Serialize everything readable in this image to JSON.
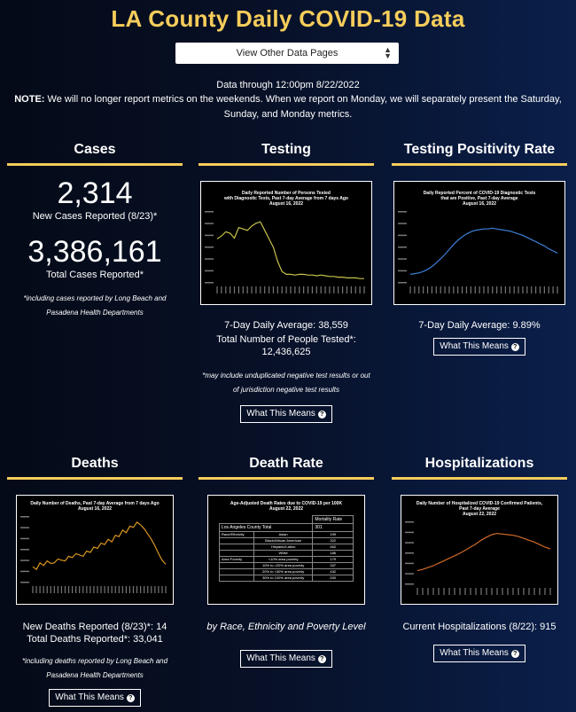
{
  "title": "LA County Daily COVID-19 Data",
  "select": {
    "value": "View Other Data Pages",
    "chevron": "updown-chevron-icon"
  },
  "data_through": "Data through 12:00pm 8/22/2022",
  "note": {
    "label": "NOTE:",
    "text": " We will no longer report metrics on the weekends. When we report on Monday, we will separately present the Saturday, Sunday, and Monday metrics."
  },
  "more_button": "What This Means",
  "accent": "#f6cd5b",
  "cases": {
    "heading": "Cases",
    "new_value": "2,314",
    "new_label": "New Cases Reported (8/23)*",
    "total_value": "3,386,161",
    "total_label": "Total Cases Reported*",
    "footnote": "*including cases reported by Long Beach and Pasadena Health Departments"
  },
  "testing": {
    "heading": "Testing",
    "chart_title": [
      "Daily Reported Number of Persons Tested",
      "with Diagnostic Tests, Past 7-day Average from 7 days Ago",
      "August 16, 2022"
    ],
    "avg": "7-Day Daily Average: 38,559",
    "total_label": "Total Number of People Tested*:",
    "total_value": "12,436,625",
    "footnote": "*may include unduplicated negative test results or out of jurisdiction negative test results"
  },
  "positivity": {
    "heading": "Testing Positivity Rate",
    "chart_title": [
      "Daily Reported Percent of COVID-19 Diagnostic Tests",
      "that are Positive, Past 7-day Average",
      "August 16, 2022"
    ],
    "avg": "7-Day Daily Average: 9.89%"
  },
  "deaths": {
    "heading": "Deaths",
    "chart_title": [
      "Daily Number of Deaths, Past 7-day Average from 7 days Ago",
      "August 16, 2022"
    ],
    "new": "New Deaths Reported (8/23)*: 14",
    "total": "Total Deaths Reported*: 33,041",
    "footnote": "*including deaths reported by Long Beach and Pasadena Health Departments"
  },
  "deathrate": {
    "heading": "Death Rate",
    "chart_title": [
      "Age-Adjusted Death Rates due to COVID-19 per 100K",
      "August 22, 2022"
    ],
    "caption": "by Race, Ethnicity and Poverty Level",
    "table": {
      "col_header": "Mortality Rate",
      "total_label": "Los Angeles County Total",
      "total_value": "301",
      "rows": [
        {
          "group": "Race/Ethnicity",
          "label": "Asian",
          "value": "199"
        },
        {
          "group": "",
          "label": "Black/African American",
          "value": "322"
        },
        {
          "group": "",
          "label": "Hispanic/Latino",
          "value": "462"
        },
        {
          "group": "",
          "label": "White",
          "value": "186"
        },
        {
          "group": "Area Poverty",
          "label": "<10% area poverty",
          "value": "179"
        },
        {
          "group": "",
          "label": "10% to <20% area poverty",
          "value": "337"
        },
        {
          "group": "",
          "label": "20% to <30% area poverty",
          "value": "432"
        },
        {
          "group": "",
          "label": "30% to 100% area poverty",
          "value": "530"
        }
      ]
    }
  },
  "hosp": {
    "heading": "Hospitalizations",
    "chart_title": [
      "Daily Number of Hospitalized COVID-19 Confirmed Patients,",
      "Past 7-day Average",
      "August 22, 2022"
    ],
    "current": "Current Hospitalizations (8/22): 915"
  },
  "chart_data": [
    {
      "type": "line",
      "title": "Daily Reported Number of Persons Tested with Diagnostic Tests, Past 7-day Average from 7 days Ago August 16, 2022",
      "color": "#c6c24a",
      "values": [
        0.62,
        0.66,
        0.72,
        0.7,
        0.63,
        0.78,
        0.76,
        0.74,
        0.8,
        0.84,
        0.86,
        0.74,
        0.62,
        0.5,
        0.3,
        0.16,
        0.12,
        0.12,
        0.11,
        0.12,
        0.12,
        0.11,
        0.11,
        0.1,
        0.11,
        0.1,
        0.09,
        0.09,
        0.08,
        0.08,
        0.07,
        0.07,
        0.07,
        0.06,
        0.06
      ]
    },
    {
      "type": "line",
      "title": "Daily Reported Percent of COVID-19 Diagnostic Tests that are Positive, Past 7-day Average August 16, 2022",
      "color": "#3b7fd6",
      "values": [
        0.12,
        0.13,
        0.14,
        0.16,
        0.19,
        0.23,
        0.28,
        0.34,
        0.4,
        0.47,
        0.54,
        0.6,
        0.65,
        0.69,
        0.72,
        0.74,
        0.75,
        0.76,
        0.76,
        0.77,
        0.76,
        0.75,
        0.74,
        0.73,
        0.71,
        0.69,
        0.67,
        0.64,
        0.61,
        0.58,
        0.55,
        0.52,
        0.48,
        0.45,
        0.42
      ]
    },
    {
      "type": "line",
      "title": "Daily Number of Deaths, Past 7-day Average from 7 days Ago August 16, 2022",
      "color": "#d9951e",
      "values": [
        0.24,
        0.2,
        0.3,
        0.26,
        0.33,
        0.29,
        0.3,
        0.36,
        0.34,
        0.33,
        0.4,
        0.38,
        0.44,
        0.42,
        0.4,
        0.48,
        0.46,
        0.54,
        0.52,
        0.6,
        0.58,
        0.66,
        0.62,
        0.72,
        0.7,
        0.8,
        0.76,
        0.86,
        0.84,
        0.92,
        0.88,
        0.82,
        0.74,
        0.66,
        0.56,
        0.44,
        0.34,
        0.28
      ]
    },
    {
      "type": "line",
      "title": "Daily Number of Hospitalized COVID-19 Confirmed Patients, Past 7-day Average August 22, 2022",
      "color": "#cf6a28",
      "values": [
        0.22,
        0.24,
        0.27,
        0.3,
        0.34,
        0.38,
        0.42,
        0.46,
        0.5,
        0.55,
        0.6,
        0.65,
        0.71,
        0.76,
        0.8,
        0.82,
        0.81,
        0.8,
        0.79,
        0.77,
        0.74,
        0.71,
        0.68,
        0.64,
        0.6,
        0.57
      ]
    }
  ]
}
